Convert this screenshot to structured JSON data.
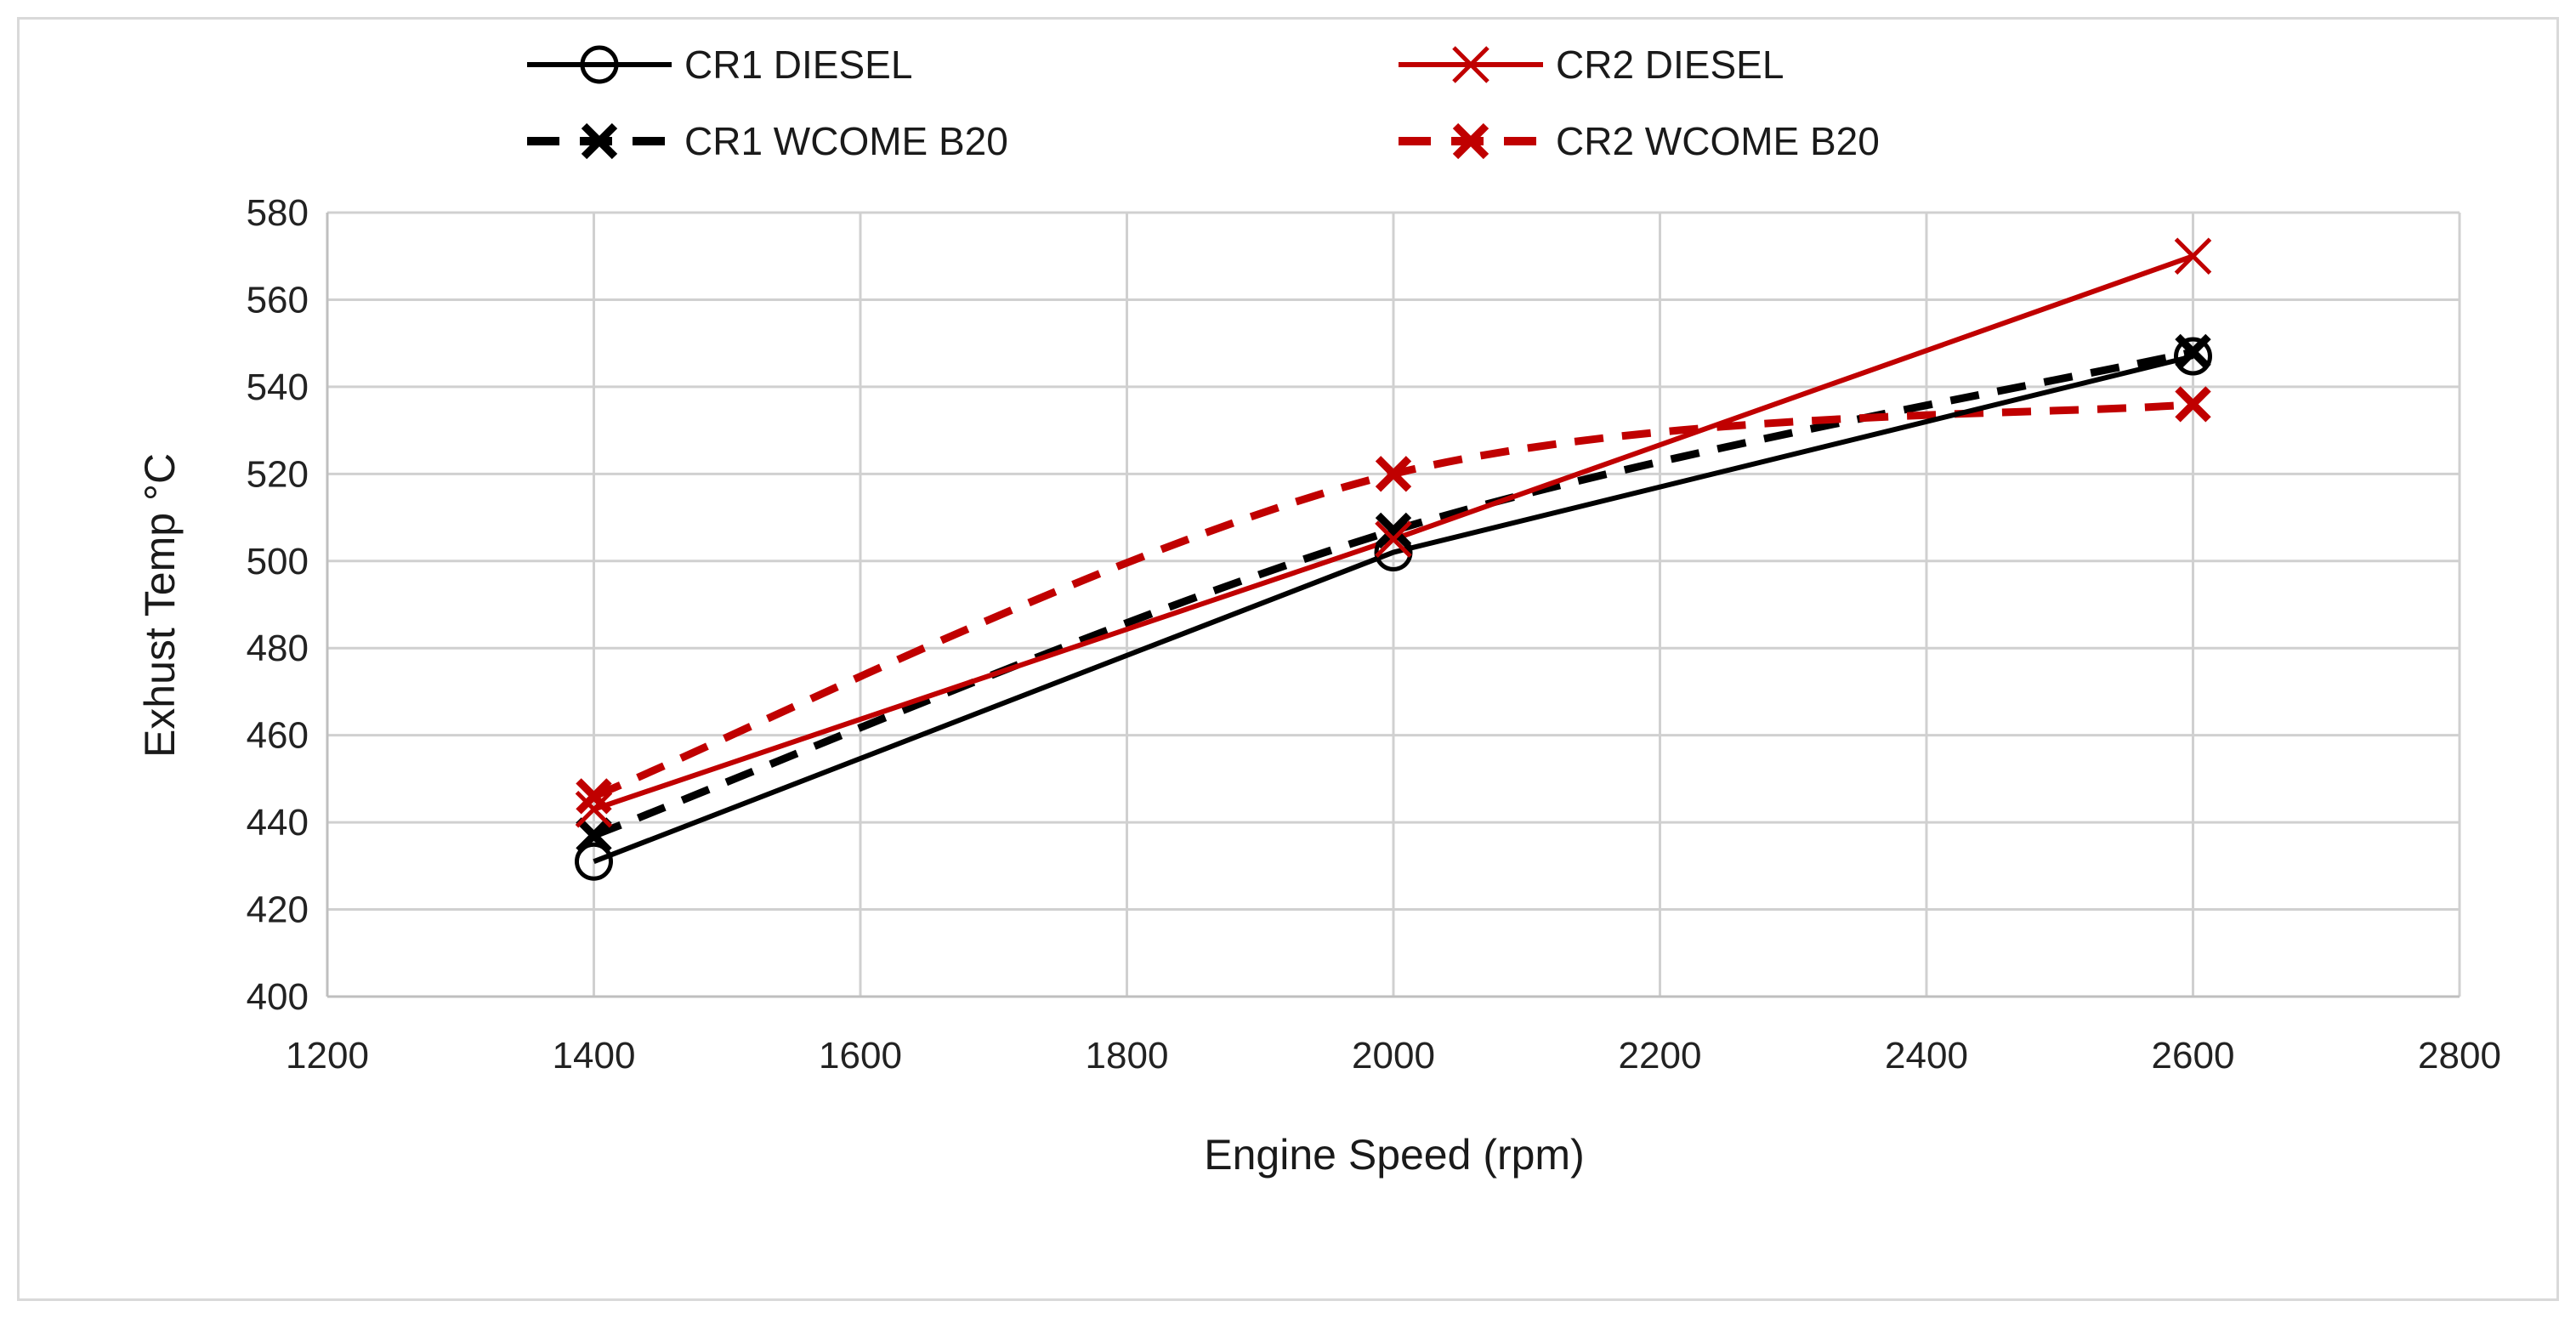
{
  "chart_data": {
    "type": "line",
    "title": "",
    "xlabel": "Engine Speed (rpm)",
    "ylabel": "Exhust Temp °C",
    "xlim": [
      1200,
      2800
    ],
    "ylim": [
      400,
      580
    ],
    "xticks": [
      1200,
      1400,
      1600,
      1800,
      2000,
      2200,
      2400,
      2600,
      2800
    ],
    "yticks": [
      400,
      420,
      440,
      460,
      480,
      500,
      520,
      540,
      560,
      580
    ],
    "grid": true,
    "legend_position": "top",
    "x": [
      1400,
      2000,
      2600
    ],
    "series": [
      {
        "name": "CR1 DIESEL",
        "values": [
          431,
          502,
          547
        ],
        "color": "#000000",
        "dashed": false,
        "marker": "circle",
        "smooth": false
      },
      {
        "name": "CR2 DIESEL",
        "values": [
          443,
          505,
          570
        ],
        "color": "#c00000",
        "dashed": false,
        "marker": "x",
        "smooth": false
      },
      {
        "name": "CR1 WCOME B20",
        "values": [
          437,
          507,
          548
        ],
        "color": "#000000",
        "dashed": true,
        "marker": "x-bold",
        "smooth": true
      },
      {
        "name": "CR2 WCOME B20",
        "values": [
          446,
          520,
          536
        ],
        "color": "#c00000",
        "dashed": true,
        "marker": "x-bold",
        "smooth": true
      }
    ]
  }
}
